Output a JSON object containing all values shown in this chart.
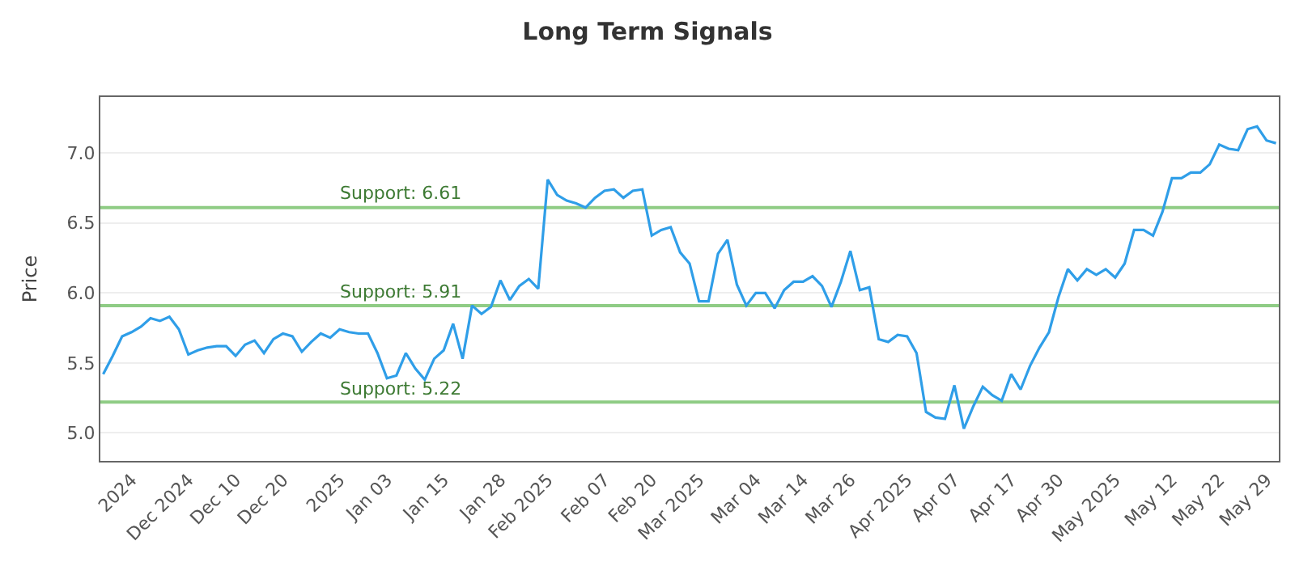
{
  "chart_data": {
    "type": "line",
    "title": "Long Term Signals",
    "ylabel": "Price",
    "categories": [
      null,
      null,
      null,
      "2024",
      null,
      null,
      null,
      null,
      null,
      "Dec 2024",
      null,
      null,
      null,
      null,
      "Dec 10",
      null,
      null,
      null,
      null,
      "Dec 20",
      null,
      null,
      null,
      null,
      null,
      "2025",
      null,
      null,
      null,
      null,
      "Jan 03",
      null,
      null,
      null,
      null,
      null,
      "Jan 15",
      null,
      null,
      null,
      null,
      null,
      "Jan 28",
      null,
      null,
      null,
      null,
      "Feb 2025",
      null,
      null,
      null,
      null,
      null,
      "Feb 07",
      null,
      null,
      null,
      null,
      "Feb 20",
      null,
      null,
      null,
      null,
      "Mar 2025",
      null,
      null,
      null,
      null,
      null,
      "Mar 04",
      null,
      null,
      null,
      null,
      "Mar 14",
      null,
      null,
      null,
      null,
      "Mar 26",
      null,
      null,
      null,
      null,
      null,
      "Apr 2025",
      null,
      null,
      null,
      null,
      "Apr 07",
      null,
      null,
      null,
      null,
      null,
      "Apr 17",
      null,
      null,
      null,
      null,
      "Apr 30",
      null,
      null,
      null,
      null,
      null,
      "May 2025",
      null,
      null,
      null,
      null,
      null,
      "May 12",
      null,
      null,
      null,
      null,
      "May 22",
      null,
      null,
      null,
      null,
      "May 29",
      null
    ],
    "series": [
      {
        "color": "#2f9ee8",
        "values": [
          5.42,
          5.55,
          5.69,
          5.72,
          5.76,
          5.82,
          5.8,
          5.83,
          5.74,
          5.56,
          5.59,
          5.61,
          5.62,
          5.62,
          5.55,
          5.63,
          5.66,
          5.57,
          5.67,
          5.71,
          5.69,
          5.58,
          5.65,
          5.71,
          5.68,
          5.74,
          5.72,
          5.71,
          5.71,
          5.57,
          5.39,
          5.41,
          5.57,
          5.46,
          5.38,
          5.53,
          5.59,
          5.78,
          5.53,
          5.91,
          5.85,
          5.9,
          6.09,
          5.95,
          6.05,
          6.1,
          6.03,
          6.81,
          6.7,
          6.66,
          6.64,
          6.61,
          6.68,
          6.73,
          6.74,
          6.68,
          6.73,
          6.74,
          6.41,
          6.45,
          6.47,
          6.29,
          6.21,
          5.94,
          5.94,
          6.28,
          6.38,
          6.06,
          5.91,
          6.0,
          6.0,
          5.89,
          6.02,
          6.08,
          6.08,
          6.12,
          6.05,
          5.9,
          6.08,
          6.3,
          6.02,
          6.04,
          5.67,
          5.65,
          5.7,
          5.69,
          5.57,
          5.15,
          5.11,
          5.1,
          5.34,
          5.03,
          5.19,
          5.33,
          5.27,
          5.23,
          5.42,
          5.31,
          5.48,
          5.61,
          5.72,
          5.97,
          6.17,
          6.09,
          6.17,
          6.13,
          6.17,
          6.11,
          6.21,
          6.45,
          6.45,
          6.41,
          6.58,
          6.82,
          6.82,
          6.86,
          6.86,
          6.92,
          7.06,
          7.03,
          7.02,
          7.17,
          7.19,
          7.09,
          7.07
        ]
      }
    ],
    "ylim": [
      4.8,
      7.4
    ],
    "yticks": [
      {
        "value": 5,
        "label": "5.0"
      },
      5.5,
      {
        "value": 6,
        "label": "6.0"
      },
      6.5,
      {
        "value": 7,
        "label": "7.0"
      }
    ],
    "grid": "y",
    "marker": "none",
    "line_style": "solid",
    "ref_lines": [
      {
        "axis": "y",
        "value": 6.61,
        "label": "Support: 6.61",
        "color": "#8fcc85"
      },
      {
        "axis": "y",
        "value": 5.91,
        "label": "Support: 5.91",
        "color": "#8fcc85"
      },
      {
        "axis": "y",
        "value": 5.22,
        "label": "Support: 5.22",
        "color": "#8fcc85"
      }
    ]
  }
}
